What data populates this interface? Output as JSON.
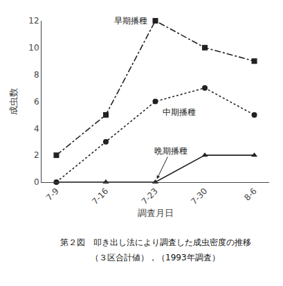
{
  "chart_data": {
    "type": "line",
    "xlabel": "調査月日",
    "ylabel": "成虫数",
    "categories": [
      "7-9",
      "7-16",
      "7-23",
      "7-30",
      "8-6"
    ],
    "series": [
      {
        "name": "早期播種",
        "color": "#222222",
        "marker": "square",
        "line_style": "dashdot",
        "values": [
          2,
          5,
          12,
          10,
          9
        ]
      },
      {
        "name": "中期播種",
        "color": "#222222",
        "marker": "circle",
        "line_style": "dot",
        "values": [
          0,
          3,
          6,
          7,
          5
        ]
      },
      {
        "name": "晩期播種",
        "color": "#222222",
        "marker": "triangle-up",
        "line_style": "solid",
        "values": [
          0,
          0,
          0,
          2,
          2
        ]
      }
    ],
    "ylim": [
      0,
      12
    ],
    "yticks": [
      0,
      2,
      4,
      6,
      8,
      10,
      12
    ],
    "grid": false,
    "annotations": [
      "第２図　叩き出し法により調査した成虫密度の推移",
      "（３区合計値），（1993年調査）"
    ]
  }
}
